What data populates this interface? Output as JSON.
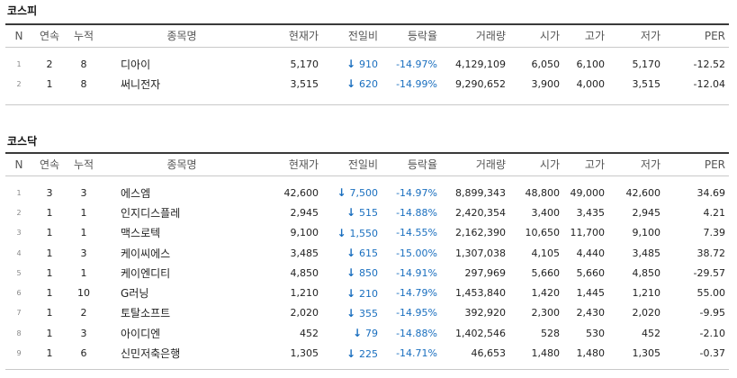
{
  "kospi": {
    "title": "코스피",
    "columns": [
      "N",
      "연속",
      "누적",
      "종목명",
      "현재가",
      "전일비",
      "등락율",
      "거래량",
      "시가",
      "고가",
      "저가",
      "PER"
    ],
    "rows": [
      {
        "n": "1",
        "streak": "2",
        "cum": "8",
        "name": "디아이",
        "price": "5,170",
        "change": "910",
        "rate": "-14.97%",
        "volume": "4,129,109",
        "open": "6,050",
        "high": "6,100",
        "low": "5,170",
        "per": "-12.52"
      },
      {
        "n": "2",
        "streak": "1",
        "cum": "8",
        "name": "써니전자",
        "price": "3,515",
        "change": "620",
        "rate": "-14.99%",
        "volume": "9,290,652",
        "open": "3,900",
        "high": "4,000",
        "low": "3,515",
        "per": "-12.04"
      }
    ]
  },
  "kosdaq": {
    "title": "코스닥",
    "columns": [
      "N",
      "연속",
      "누적",
      "종목명",
      "현재가",
      "전일비",
      "등락율",
      "거래량",
      "시가",
      "고가",
      "저가",
      "PER"
    ],
    "rows": [
      {
        "n": "1",
        "streak": "3",
        "cum": "3",
        "name": "에스엠",
        "price": "42,600",
        "change": "7,500",
        "rate": "-14.97%",
        "volume": "8,899,343",
        "open": "48,800",
        "high": "49,000",
        "low": "42,600",
        "per": "34.69"
      },
      {
        "n": "2",
        "streak": "1",
        "cum": "1",
        "name": "인지디스플레",
        "price": "2,945",
        "change": "515",
        "rate": "-14.88%",
        "volume": "2,420,354",
        "open": "3,400",
        "high": "3,435",
        "low": "2,945",
        "per": "4.21"
      },
      {
        "n": "3",
        "streak": "1",
        "cum": "1",
        "name": "맥스로텍",
        "price": "9,100",
        "change": "1,550",
        "rate": "-14.55%",
        "volume": "2,162,390",
        "open": "10,650",
        "high": "11,700",
        "low": "9,100",
        "per": "7.39"
      },
      {
        "n": "4",
        "streak": "1",
        "cum": "3",
        "name": "케이씨에스",
        "price": "3,485",
        "change": "615",
        "rate": "-15.00%",
        "volume": "1,307,038",
        "open": "4,105",
        "high": "4,440",
        "low": "3,485",
        "per": "38.72"
      },
      {
        "n": "5",
        "streak": "1",
        "cum": "1",
        "name": "케이엔디티",
        "price": "4,850",
        "change": "850",
        "rate": "-14.91%",
        "volume": "297,969",
        "open": "5,660",
        "high": "5,660",
        "low": "4,850",
        "per": "-29.57"
      },
      {
        "n": "6",
        "streak": "1",
        "cum": "10",
        "name": "G러닝",
        "price": "1,210",
        "change": "210",
        "rate": "-14.79%",
        "volume": "1,453,840",
        "open": "1,420",
        "high": "1,445",
        "low": "1,210",
        "per": "55.00"
      },
      {
        "n": "7",
        "streak": "1",
        "cum": "2",
        "name": "토탈소프트",
        "price": "2,020",
        "change": "355",
        "rate": "-14.95%",
        "volume": "392,920",
        "open": "2,300",
        "high": "2,430",
        "low": "2,020",
        "per": "-9.95"
      },
      {
        "n": "8",
        "streak": "1",
        "cum": "3",
        "name": "아이디엔",
        "price": "452",
        "change": "79",
        "rate": "-14.88%",
        "volume": "1,402,546",
        "open": "528",
        "high": "530",
        "low": "452",
        "per": "-2.10"
      },
      {
        "n": "9",
        "streak": "1",
        "cum": "6",
        "name": "신민저축은행",
        "price": "1,305",
        "change": "225",
        "rate": "-14.71%",
        "volume": "46,653",
        "open": "1,480",
        "high": "1,480",
        "low": "1,305",
        "per": "-0.37"
      }
    ]
  },
  "icons": {
    "down_arrow": "down-arrow-icon"
  },
  "colors": {
    "down": "#1a6fbf",
    "header_rule": "#3a3a3a"
  }
}
